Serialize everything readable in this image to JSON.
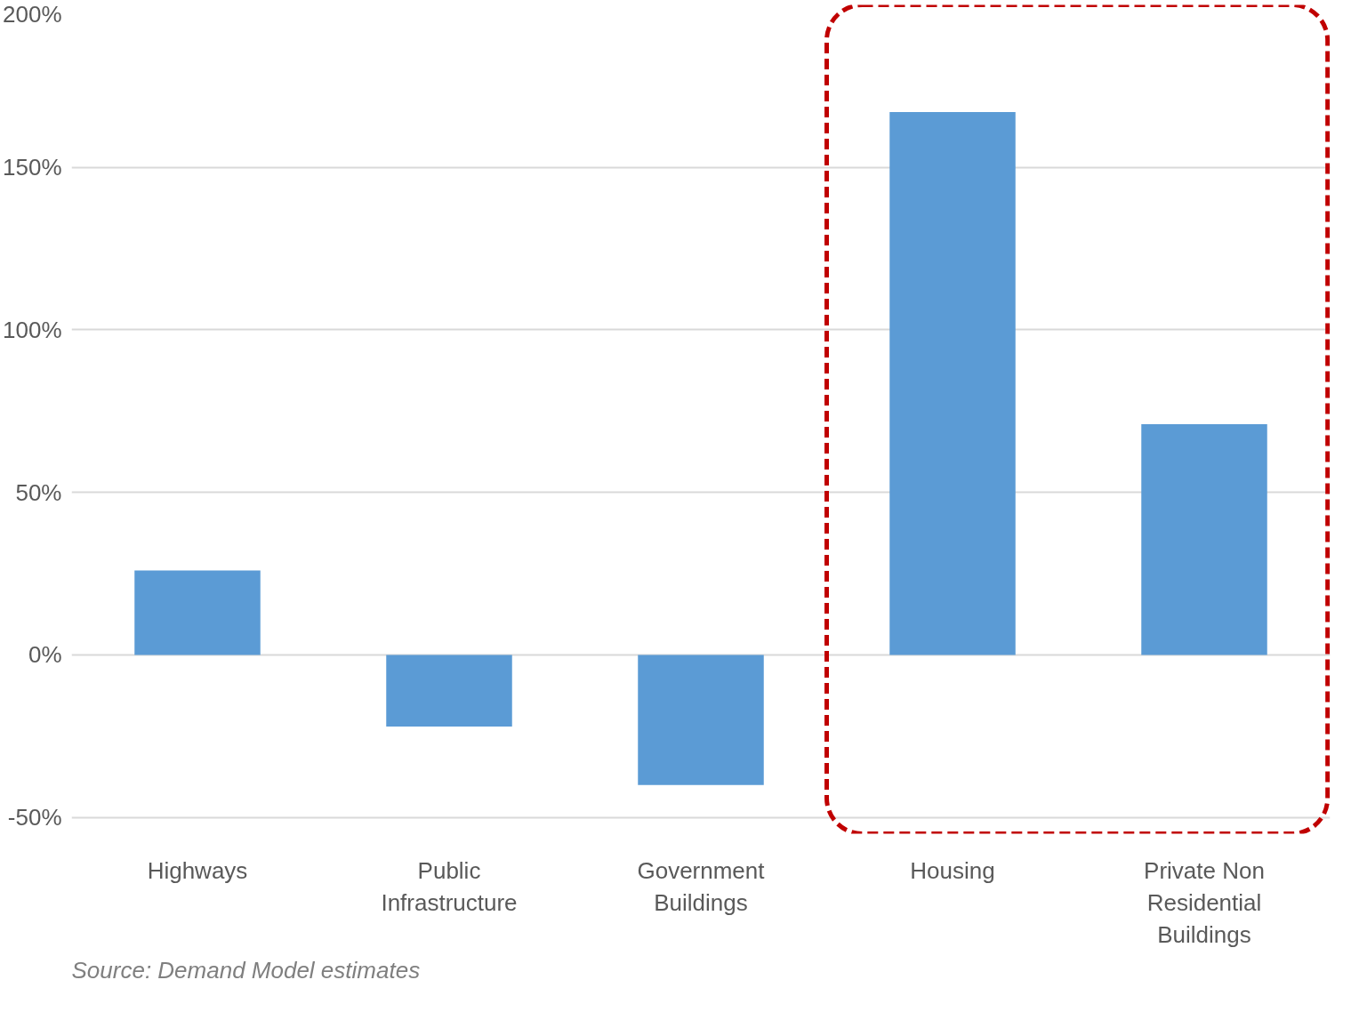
{
  "chart_data": {
    "type": "bar",
    "categories": [
      "Highways",
      "Public Infrastructure",
      "Government Buildings",
      "Housing",
      "Private Non Residential Buildings"
    ],
    "values": [
      26,
      -22,
      -40,
      167,
      71
    ],
    "color": "#5b9bd5",
    "ylim": [
      -55,
      200
    ],
    "yticks": [
      {
        "value": -50,
        "label": "-50%"
      },
      {
        "value": 0,
        "label": "0%"
      },
      {
        "value": 50,
        "label": "50%"
      },
      {
        "value": 100,
        "label": "100%"
      },
      {
        "value": 150,
        "label": "150%"
      },
      {
        "value": 200,
        "label": "200%"
      }
    ],
    "grid": "y",
    "annotations": [
      "Source: Demand Model estimates"
    ]
  }
}
